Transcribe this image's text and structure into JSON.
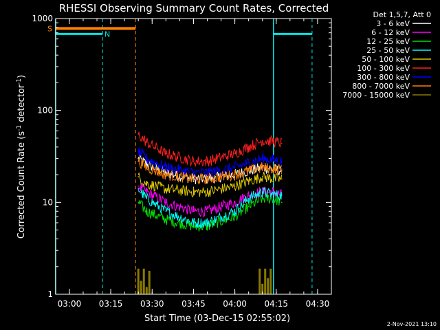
{
  "chart_data": {
    "type": "line",
    "title": "RHESSI Observing Summary Count Rates, Corrected",
    "ylabel": "Corrected Count Rate (s",
    "ylabel_sup": "-1",
    "ylabel_end": " detector",
    "ylabel_sup2": "-1",
    "ylabel_close": ")",
    "xlabel": "Start Time (03-Dec-15 02:55:02)",
    "footer": "2-Nov-2021 13:10",
    "yscale": "log",
    "ylim": [
      1,
      1000
    ],
    "yticks": [
      1,
      10,
      100,
      1000
    ],
    "ytick_labels": [
      "1",
      "10",
      "100",
      "1000"
    ],
    "xlim": [
      "02:55:02",
      "04:35:00"
    ],
    "xticks": [
      "03:00",
      "03:15",
      "03:30",
      "03:45",
      "04:00",
      "04:15",
      "04:30"
    ],
    "legend_placement": "right",
    "legend_header": "Det 1,5,7, Att 0",
    "colors": {
      "background": "#000000",
      "axes": "#ffffff",
      "night_marker": "#00e5e5",
      "saa_marker": "#ff8000"
    },
    "markers": {
      "saa_label": "S",
      "night_label": "N",
      "saa_bar": {
        "start": "02:55",
        "end": "03:24",
        "level": 780
      },
      "night_bars": [
        {
          "start": "02:55",
          "end": "03:12",
          "level": 680
        },
        {
          "start": "04:14",
          "end": "04:28",
          "level": 680
        }
      ],
      "night_lines": [
        "03:12",
        "04:14",
        "04:28"
      ],
      "saa_lines": [
        "03:24"
      ],
      "edge_lines": [
        "02:55"
      ]
    },
    "series": [
      {
        "name": "3 - 6 keV",
        "color": "#ffffff",
        "x": [
          "03:25",
          "03:28",
          "03:35",
          "03:45",
          "03:50",
          "04:00",
          "04:05",
          "04:10",
          "04:14",
          "04:17"
        ],
        "values": [
          30,
          26,
          21,
          18,
          18,
          20,
          22,
          24,
          23,
          22
        ]
      },
      {
        "name": "6 - 12 keV",
        "color": "#ff00ff",
        "x": [
          "03:25",
          "03:28",
          "03:35",
          "03:45",
          "03:50",
          "04:00",
          "04:05",
          "04:10",
          "04:14",
          "04:17"
        ],
        "values": [
          15,
          13,
          10,
          8,
          8,
          10,
          12,
          13,
          13,
          12
        ]
      },
      {
        "name": "12 - 25 keV",
        "color": "#00e000",
        "x": [
          "03:25",
          "03:28",
          "03:35",
          "03:45",
          "03:50",
          "04:00",
          "04:05",
          "04:10",
          "04:14",
          "04:17"
        ],
        "values": [
          10,
          8,
          6.5,
          5.5,
          5.5,
          7,
          9,
          11,
          11,
          10
        ]
      },
      {
        "name": "25 - 50 keV",
        "color": "#00ffff",
        "x": [
          "03:25",
          "03:28",
          "03:35",
          "03:45",
          "03:50",
          "04:00",
          "04:05",
          "04:10",
          "04:14",
          "04:17"
        ],
        "values": [
          14,
          11,
          8,
          6,
          6,
          8,
          11,
          13,
          12,
          12
        ]
      },
      {
        "name": "50 - 100 keV",
        "color": "#ddc800",
        "x": [
          "03:25",
          "03:28",
          "03:35",
          "03:45",
          "03:50",
          "04:00",
          "04:05",
          "04:10",
          "04:14",
          "04:17"
        ],
        "values": [
          19,
          16,
          14,
          13,
          13,
          15,
          17,
          19,
          18,
          18
        ]
      },
      {
        "name": "100 - 300 keV",
        "color": "#ff2020",
        "x": [
          "03:25",
          "03:28",
          "03:35",
          "03:45",
          "03:50",
          "04:00",
          "04:05",
          "04:10",
          "04:14",
          "04:17"
        ],
        "values": [
          55,
          45,
          34,
          28,
          28,
          34,
          40,
          47,
          46,
          44
        ]
      },
      {
        "name": "300 - 800 keV",
        "color": "#0000ff",
        "x": [
          "03:25",
          "03:28",
          "03:35",
          "03:45",
          "03:50",
          "04:00",
          "04:05",
          "04:10",
          "04:14",
          "04:17"
        ],
        "values": [
          36,
          30,
          24,
          21,
          21,
          24,
          27,
          30,
          29,
          28
        ]
      },
      {
        "name": "800 - 7000 keV",
        "color": "#ff8000",
        "x": [
          "03:25",
          "03:28",
          "03:35",
          "03:45",
          "03:50",
          "04:00",
          "04:05",
          "04:10",
          "04:14",
          "04:17"
        ],
        "values": [
          28,
          24,
          20,
          18,
          18,
          20,
          22,
          24,
          23,
          23
        ]
      },
      {
        "name": "7000 - 15000 keV",
        "color": "#8a7a00",
        "x": [
          "03:25",
          "03:26",
          "03:27",
          "03:28",
          "03:29",
          "04:09",
          "04:10",
          "04:11",
          "04:12",
          "04:13"
        ],
        "values": [
          1.9,
          1.4,
          1.9,
          1.2,
          1.8,
          1.9,
          1.3,
          1.9,
          1.5,
          1.9
        ]
      }
    ]
  }
}
